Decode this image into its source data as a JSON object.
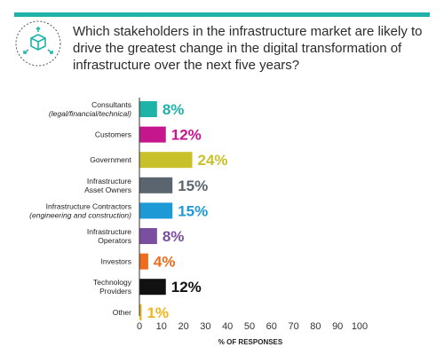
{
  "question": "Which stakeholders in the infrastructure market are likely to drive the greatest change in the digital transformation of infrastructure over the next five years?",
  "colors": {
    "accent": "#1fb3a7",
    "icon": "#1fb3a7"
  },
  "icon": "cube-network-icon",
  "chart_data": {
    "type": "bar",
    "orientation": "horizontal",
    "xlabel": "% OF RESPONSES",
    "xlim": [
      0,
      100
    ],
    "xticks": [
      "0",
      "10",
      "20",
      "30",
      "40",
      "50",
      "60",
      "70",
      "80",
      "90",
      "100"
    ],
    "grid": false,
    "categories": [
      {
        "line1": "Consultants",
        "line2": "(legal/financial/technical)",
        "line2_italic": true
      },
      {
        "line1": "Customers",
        "line2": ""
      },
      {
        "line1": "Government",
        "line2": ""
      },
      {
        "line1": "Infrastructure",
        "line2": "Asset Owners"
      },
      {
        "line1": "Infrastructure Contractors",
        "line2": "(engineering and construction)",
        "line2_italic": true
      },
      {
        "line1": "Infrastructure",
        "line2": "Operators"
      },
      {
        "line1": "Investors",
        "line2": ""
      },
      {
        "line1": "Technology",
        "line2": "Providers"
      },
      {
        "line1": "Other",
        "line2": ""
      }
    ],
    "values": [
      8,
      12,
      24,
      15,
      15,
      8,
      4,
      12,
      1
    ],
    "value_labels": [
      "8%",
      "12%",
      "24%",
      "15%",
      "15%",
      "8%",
      "4%",
      "12%",
      "1%"
    ],
    "colors": [
      "#1fb3a7",
      "#c6168d",
      "#c8c12a",
      "#5a6570",
      "#1d9ad6",
      "#7b4fa0",
      "#ef6c1e",
      "#111111",
      "#f2b41b"
    ]
  }
}
